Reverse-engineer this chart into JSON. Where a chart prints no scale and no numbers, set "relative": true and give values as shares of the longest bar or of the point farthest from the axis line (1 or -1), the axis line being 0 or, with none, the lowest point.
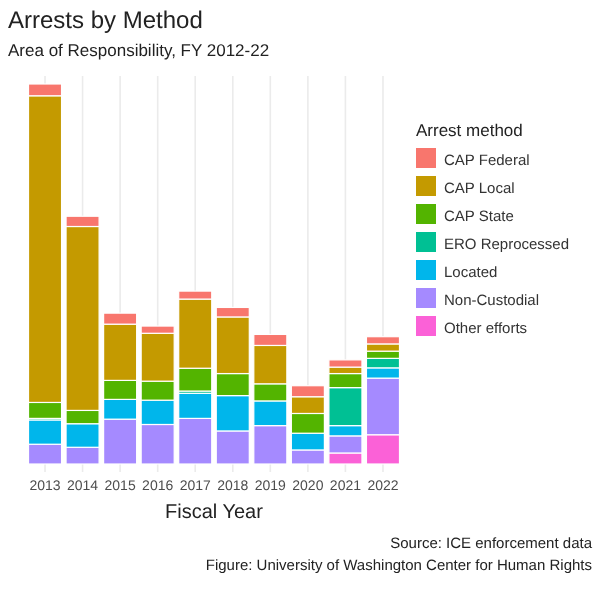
{
  "chart_data": {
    "type": "bar",
    "title": "Arrests by Method",
    "subtitle": "Area of Responsibility, FY 2012-22",
    "xlabel": "Fiscal Year",
    "legend_title": "Arrest method",
    "annotations": [
      "Source: ICE enforcement data",
      "Figure: University of Washington Center for Human Rights"
    ],
    "categories": [
      "2013",
      "2014",
      "2015",
      "2016",
      "2017",
      "2018",
      "2019",
      "2020",
      "2021",
      "2022"
    ],
    "relative": true,
    "stacked": true,
    "grid": "x",
    "legend": "right",
    "series": [
      {
        "name": "Other efforts",
        "color": "#fb61d7",
        "values": [
          0,
          0,
          0,
          0,
          0,
          0,
          0,
          0,
          0.029,
          0.077
        ]
      },
      {
        "name": "Non-Custodial",
        "color": "#a58aff",
        "values": [
          0.052,
          0.044,
          0.118,
          0.104,
          0.12,
          0.087,
          0.101,
          0.037,
          0.045,
          0.149
        ]
      },
      {
        "name": "Located",
        "color": "#00b6eb",
        "values": [
          0.064,
          0.062,
          0.052,
          0.064,
          0.066,
          0.093,
          0.065,
          0.044,
          0.027,
          0.027
        ]
      },
      {
        "name": "ERO Reprocessed",
        "color": "#00c094",
        "values": [
          0.004,
          0,
          0,
          0,
          0.006,
          0,
          0,
          0,
          0.1,
          0.025
        ]
      },
      {
        "name": "CAP State",
        "color": "#53b400",
        "values": [
          0.042,
          0.035,
          0.05,
          0.05,
          0.06,
          0.058,
          0.045,
          0.052,
          0.037,
          0.019
        ]
      },
      {
        "name": "CAP Local",
        "color": "#c49a00",
        "values": [
          0.807,
          0.484,
          0.148,
          0.126,
          0.182,
          0.149,
          0.101,
          0.044,
          0.017,
          0.019
        ]
      },
      {
        "name": "CAP Federal",
        "color": "#f8766d",
        "values": [
          0.031,
          0.027,
          0.029,
          0.019,
          0.021,
          0.025,
          0.029,
          0.029,
          0.019,
          0.019
        ]
      }
    ]
  }
}
